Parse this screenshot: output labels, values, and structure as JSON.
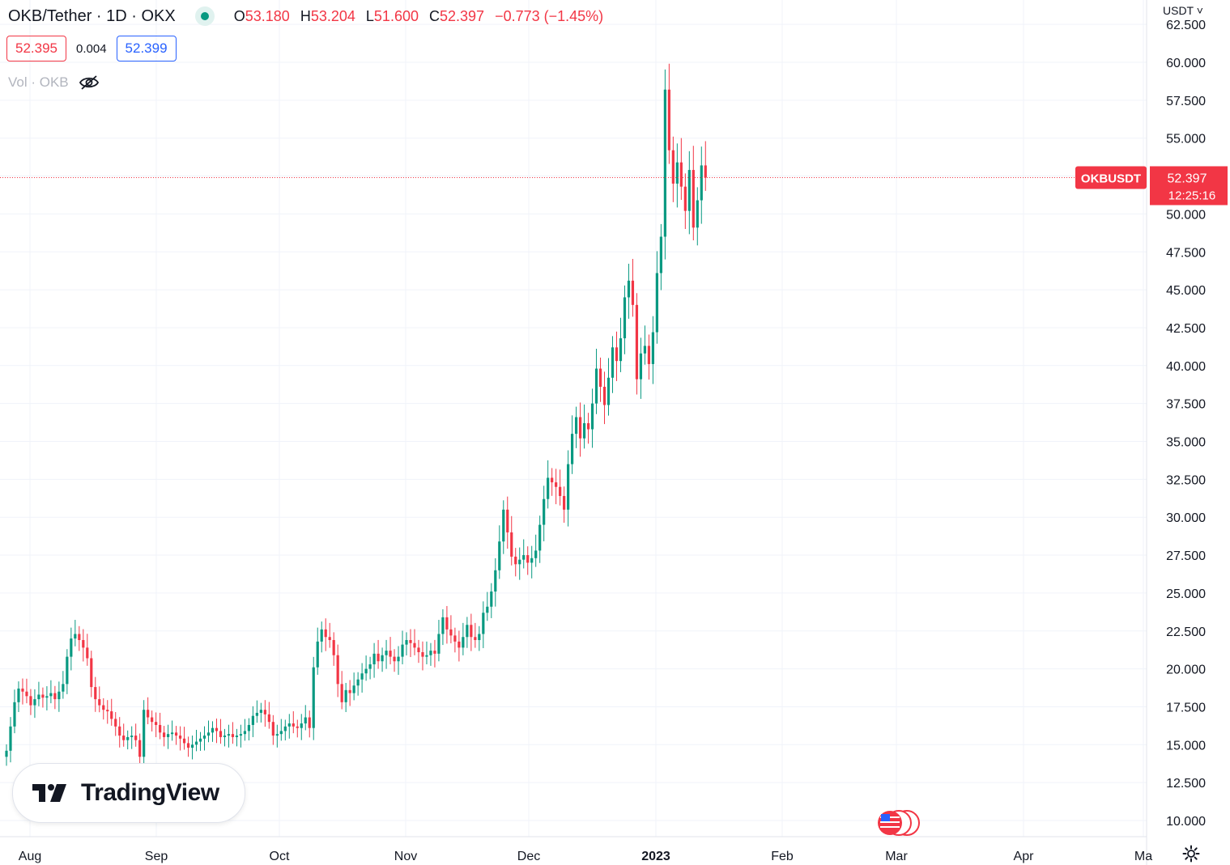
{
  "header": {
    "symbol": "OKB/Tether · 1D · OKX",
    "ohlc": {
      "o_label": "O",
      "o": "53.180",
      "h_label": "H",
      "h": "53.204",
      "l_label": "L",
      "l": "51.600",
      "c_label": "C",
      "c": "52.397",
      "change": "−0.773 (−1.45%)"
    },
    "bid": "52.395",
    "spread": "0.004",
    "ask": "52.399",
    "volume_label": "Vol · OKB",
    "currency": "USDT ˅"
  },
  "logo": {
    "text": "TradingView"
  },
  "colors": {
    "up": "#089981",
    "down": "#f23645",
    "grid": "#f0f3fa",
    "text": "#131722",
    "price_tag": "#f23645"
  },
  "chart_data": {
    "type": "candlestick",
    "x_ticks": [
      "Aug",
      "Sep",
      "Oct",
      "Nov",
      "Dec",
      "2023",
      "Feb",
      "Mar",
      "Apr",
      "Ma"
    ],
    "y_ticks": [
      "10.000",
      "12.500",
      "15.000",
      "17.500",
      "20.000",
      "22.500",
      "25.000",
      "27.500",
      "30.000",
      "32.500",
      "35.000",
      "37.500",
      "40.000",
      "42.500",
      "45.000",
      "47.500",
      "50.000",
      "52.500",
      "55.000",
      "57.500",
      "60.000",
      "62.500"
    ],
    "ylim": [
      9.6,
      62.8
    ],
    "last_price": {
      "label": "OKBUSDT",
      "value": "52.397",
      "countdown": "12:25:16",
      "y": 52.397
    },
    "series_y": [
      14.6,
      16.2,
      17.8,
      18.7,
      18.5,
      18.2,
      17.6,
      18.0,
      18.3,
      18.1,
      18.2,
      18.4,
      18.0,
      18.5,
      19.0,
      20.8,
      22.0,
      22.3,
      21.9,
      21.4,
      20.7,
      18.8,
      18.0,
      17.6,
      17.3,
      17.2,
      16.7,
      16.2,
      15.6,
      15.3,
      15.5,
      15.6,
      15.3,
      14.2,
      17.3,
      16.8,
      16.5,
      16.3,
      15.8,
      15.5,
      15.7,
      15.8,
      15.6,
      15.4,
      15.1,
      14.8,
      15.0,
      15.2,
      15.4,
      15.6,
      15.8,
      16.1,
      15.9,
      15.5,
      15.6,
      15.7,
      15.5,
      15.6,
      15.7,
      15.9,
      16.3,
      16.9,
      17.1,
      17.3,
      17.0,
      16.5,
      15.6,
      15.7,
      15.9,
      16.2,
      16.4,
      16.2,
      16.1,
      16.4,
      16.8,
      16.1,
      20.1,
      21.8,
      22.6,
      22.1,
      21.9,
      20.9,
      19.0,
      17.8,
      18.6,
      18.4,
      18.9,
      19.3,
      19.7,
      20.0,
      20.3,
      21.0,
      20.5,
      20.9,
      21.2,
      20.8,
      20.5,
      20.8,
      21.6,
      21.9,
      21.7,
      21.4,
      21.1,
      20.8,
      20.9,
      21.2,
      21.0,
      22.3,
      23.4,
      22.6,
      22.2,
      21.8,
      21.4,
      22.1,
      22.9,
      22.1,
      21.9,
      22.3,
      23.7,
      24.1,
      25.1,
      26.5,
      28.4,
      30.5,
      29.0,
      27.4,
      26.9,
      27.2,
      27.5,
      27.0,
      27.3,
      27.8,
      29.5,
      31.2,
      32.6,
      32.3,
      32.0,
      31.4,
      30.5,
      33.5,
      35.5,
      36.6,
      35.2,
      36.2,
      35.8,
      37.5,
      39.8,
      38.6,
      37.4,
      39.2,
      41.2,
      40.3,
      41.8,
      44.5,
      45.6,
      44.0,
      39.1,
      40.8,
      41.3,
      40.1,
      42.2,
      46.1,
      48.5,
      58.2,
      54.2,
      52.0,
      53.4,
      51.8,
      50.2,
      52.9,
      49.1,
      50.9,
      53.2,
      52.4
    ]
  }
}
